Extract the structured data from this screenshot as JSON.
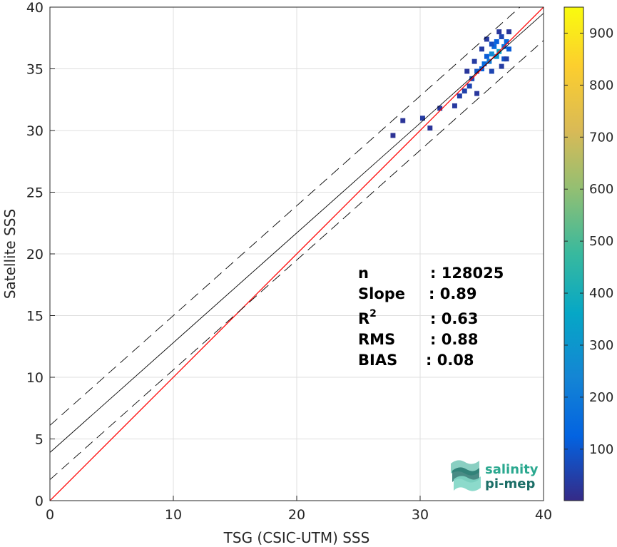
{
  "chart_data": {
    "type": "heatmap",
    "xlabel": "TSG (CSIC-UTM) SSS",
    "ylabel": "Satellite SSS",
    "xlim": [
      0,
      40
    ],
    "ylim": [
      0,
      40
    ],
    "xticks": [
      0,
      10,
      20,
      30,
      40
    ],
    "yticks": [
      0,
      5,
      10,
      15,
      20,
      25,
      30,
      35,
      40
    ],
    "grid": true,
    "colorbar": {
      "colormap": "parula",
      "range": [
        1,
        950
      ],
      "ticks": [
        100,
        200,
        300,
        400,
        500,
        600,
        700,
        800,
        900
      ]
    },
    "lines": [
      {
        "kind": "identity",
        "color": "#ff0000",
        "style": "solid",
        "x": [
          0,
          40
        ],
        "y": [
          0,
          40
        ]
      },
      {
        "kind": "fit",
        "color": "#000000",
        "style": "solid",
        "x": [
          0,
          40
        ],
        "y": [
          3.9,
          39.5
        ]
      },
      {
        "kind": "fit+std",
        "color": "#000000",
        "style": "dashed",
        "x": [
          0,
          40
        ],
        "y": [
          6.1,
          41.7
        ]
      },
      {
        "kind": "fit-std",
        "color": "#000000",
        "style": "dashed",
        "x": [
          0,
          40
        ],
        "y": [
          1.7,
          37.3
        ]
      }
    ],
    "density_cells": [
      {
        "x": 36.6,
        "y": 37.6,
        "v": 60
      },
      {
        "x": 36.2,
        "y": 37.2,
        "v": 120
      },
      {
        "x": 36.8,
        "y": 36.8,
        "v": 180
      },
      {
        "x": 36.4,
        "y": 36.4,
        "v": 350
      },
      {
        "x": 36.0,
        "y": 36.8,
        "v": 150
      },
      {
        "x": 35.8,
        "y": 36.2,
        "v": 260
      },
      {
        "x": 36.2,
        "y": 36.0,
        "v": 300
      },
      {
        "x": 35.6,
        "y": 35.6,
        "v": 200
      },
      {
        "x": 35.2,
        "y": 35.4,
        "v": 150
      },
      {
        "x": 35.4,
        "y": 36.0,
        "v": 110
      },
      {
        "x": 35.0,
        "y": 35.0,
        "v": 120
      },
      {
        "x": 34.6,
        "y": 34.8,
        "v": 90
      },
      {
        "x": 35.8,
        "y": 37.0,
        "v": 80
      },
      {
        "x": 37.0,
        "y": 37.2,
        "v": 140
      },
      {
        "x": 37.2,
        "y": 36.6,
        "v": 110
      },
      {
        "x": 36.8,
        "y": 35.8,
        "v": 90
      },
      {
        "x": 34.2,
        "y": 34.2,
        "v": 70
      },
      {
        "x": 34.0,
        "y": 33.6,
        "v": 60
      },
      {
        "x": 33.6,
        "y": 33.2,
        "v": 50
      },
      {
        "x": 34.4,
        "y": 35.6,
        "v": 40
      },
      {
        "x": 35.0,
        "y": 36.6,
        "v": 40
      },
      {
        "x": 35.4,
        "y": 37.4,
        "v": 35
      },
      {
        "x": 36.4,
        "y": 38.0,
        "v": 30
      },
      {
        "x": 37.2,
        "y": 38.0,
        "v": 30
      },
      {
        "x": 33.2,
        "y": 32.8,
        "v": 45
      },
      {
        "x": 32.8,
        "y": 32.0,
        "v": 35
      },
      {
        "x": 31.6,
        "y": 31.8,
        "v": 30
      },
      {
        "x": 30.2,
        "y": 31.0,
        "v": 40
      },
      {
        "x": 28.6,
        "y": 30.8,
        "v": 25
      },
      {
        "x": 27.8,
        "y": 29.6,
        "v": 20
      },
      {
        "x": 30.8,
        "y": 30.2,
        "v": 25
      },
      {
        "x": 34.6,
        "y": 33.0,
        "v": 30
      },
      {
        "x": 33.8,
        "y": 34.8,
        "v": 30
      },
      {
        "x": 35.8,
        "y": 34.8,
        "v": 60
      },
      {
        "x": 36.6,
        "y": 35.2,
        "v": 40
      },
      {
        "x": 37.0,
        "y": 35.8,
        "v": 50
      }
    ],
    "stats": [
      {
        "name": "n",
        "value": ": 128025"
      },
      {
        "name": "Slope",
        "value": ": 0.89"
      },
      {
        "name": "R",
        "sup": "2",
        "value": ": 0.63"
      },
      {
        "name": "RMS",
        "value": ": 0.88"
      },
      {
        "name": "BIAS",
        "value": ": 0.08"
      }
    ]
  },
  "logo": {
    "line1": "salinity",
    "line2": "pi-mep",
    "color_top": "#2aa88f",
    "color_bottom": "#1b6e67"
  }
}
